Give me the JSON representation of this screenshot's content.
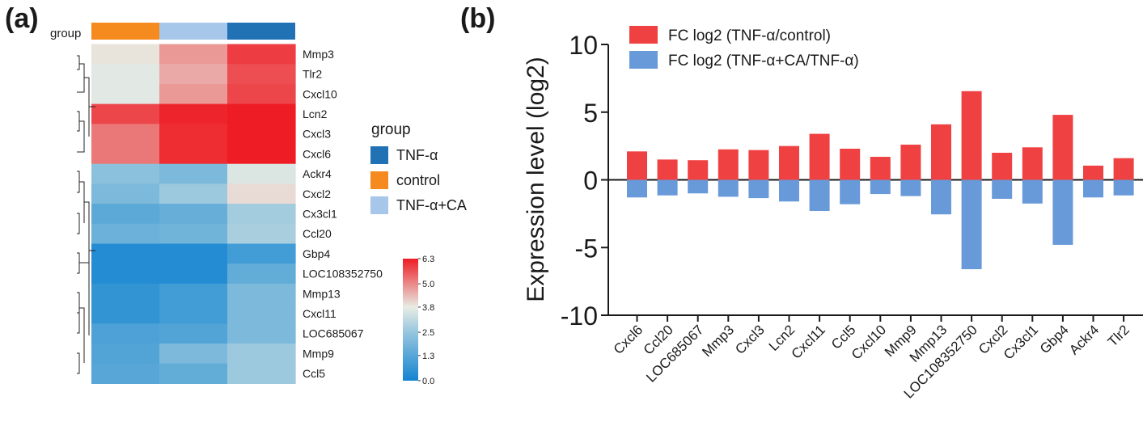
{
  "chart_data": [
    {
      "type": "heatmap",
      "panel_label": "(a)",
      "group_label": "group",
      "columns": [
        "control",
        "TNF-α+CA",
        "TNF-α"
      ],
      "rows": [
        "Mmp3",
        "Tlr2",
        "Cxcl10",
        "Lcn2",
        "Cxcl3",
        "Cxcl6",
        "Ackr4",
        "Cxcl2",
        "Cx3cl1",
        "Ccl20",
        "Gbp4",
        "LOC108352750",
        "Mmp13",
        "Cxcl11",
        "LOC685067",
        "Mmp9",
        "Ccl5"
      ],
      "values": [
        [
          3.9,
          4.8,
          5.9
        ],
        [
          3.7,
          4.6,
          5.7
        ],
        [
          3.7,
          4.8,
          5.8
        ],
        [
          5.8,
          6.2,
          6.3
        ],
        [
          5.2,
          6.1,
          6.3
        ],
        [
          5.2,
          6.1,
          6.3
        ],
        [
          2.3,
          2.0,
          3.6
        ],
        [
          2.0,
          2.6,
          4.0
        ],
        [
          1.4,
          1.6,
          2.7
        ],
        [
          1.7,
          1.8,
          2.8
        ],
        [
          0.3,
          0.3,
          0.9
        ],
        [
          0.3,
          0.3,
          1.5
        ],
        [
          0.6,
          0.9,
          2.0
        ],
        [
          0.6,
          0.9,
          2.0
        ],
        [
          1.1,
          1.2,
          2.0
        ],
        [
          1.2,
          2.0,
          2.6
        ],
        [
          1.3,
          1.5,
          2.6
        ]
      ],
      "legend": {
        "title": "group",
        "entries": [
          {
            "name": "TNF-α",
            "color": "#2171b5"
          },
          {
            "name": "control",
            "color": "#f58a1f"
          },
          {
            "name": "TNF-α+CA",
            "color": "#a6c6ea"
          }
        ]
      },
      "colorbar": {
        "min": 0.0,
        "max": 6.3,
        "ticks": [
          "6.3",
          "5.0",
          "3.8",
          "2.5",
          "1.3",
          "0.0"
        ]
      },
      "dendrogram": "present"
    },
    {
      "type": "bar",
      "panel_label": "(b)",
      "ylabel": "Expression level (log2)",
      "ylim": [
        -10,
        10
      ],
      "yticks": [
        "10",
        "5",
        "0",
        "-5",
        "-10"
      ],
      "categories": [
        "Cxcl6",
        "Ccl20",
        "LOC685067",
        "Mmp3",
        "Cxcl3",
        "Lcn2",
        "Cxcl11",
        "Ccl5",
        "Cxcl10",
        "Mmp9",
        "Mmp13",
        "LOC108352750",
        "Cxcl2",
        "Cx3cl1",
        "Gbp4",
        "Ackr4",
        "Tlr2"
      ],
      "series": [
        {
          "name": "FC log2 (TNF-α/control)",
          "color": "#ef4141",
          "values": [
            2.1,
            1.5,
            1.45,
            2.25,
            2.2,
            2.5,
            3.4,
            2.3,
            1.7,
            2.6,
            4.1,
            6.55,
            2.0,
            2.4,
            4.8,
            1.05,
            1.6
          ]
        },
        {
          "name": "FC log2 (TNF-α+CA/TNF-α)",
          "color": "#6899d8",
          "values": [
            -1.3,
            -1.15,
            -1.0,
            -1.25,
            -1.35,
            -1.6,
            -2.3,
            -1.8,
            -1.05,
            -1.2,
            -2.55,
            -6.6,
            -1.4,
            -1.75,
            -4.8,
            -1.3,
            -1.15
          ]
        }
      ]
    }
  ]
}
